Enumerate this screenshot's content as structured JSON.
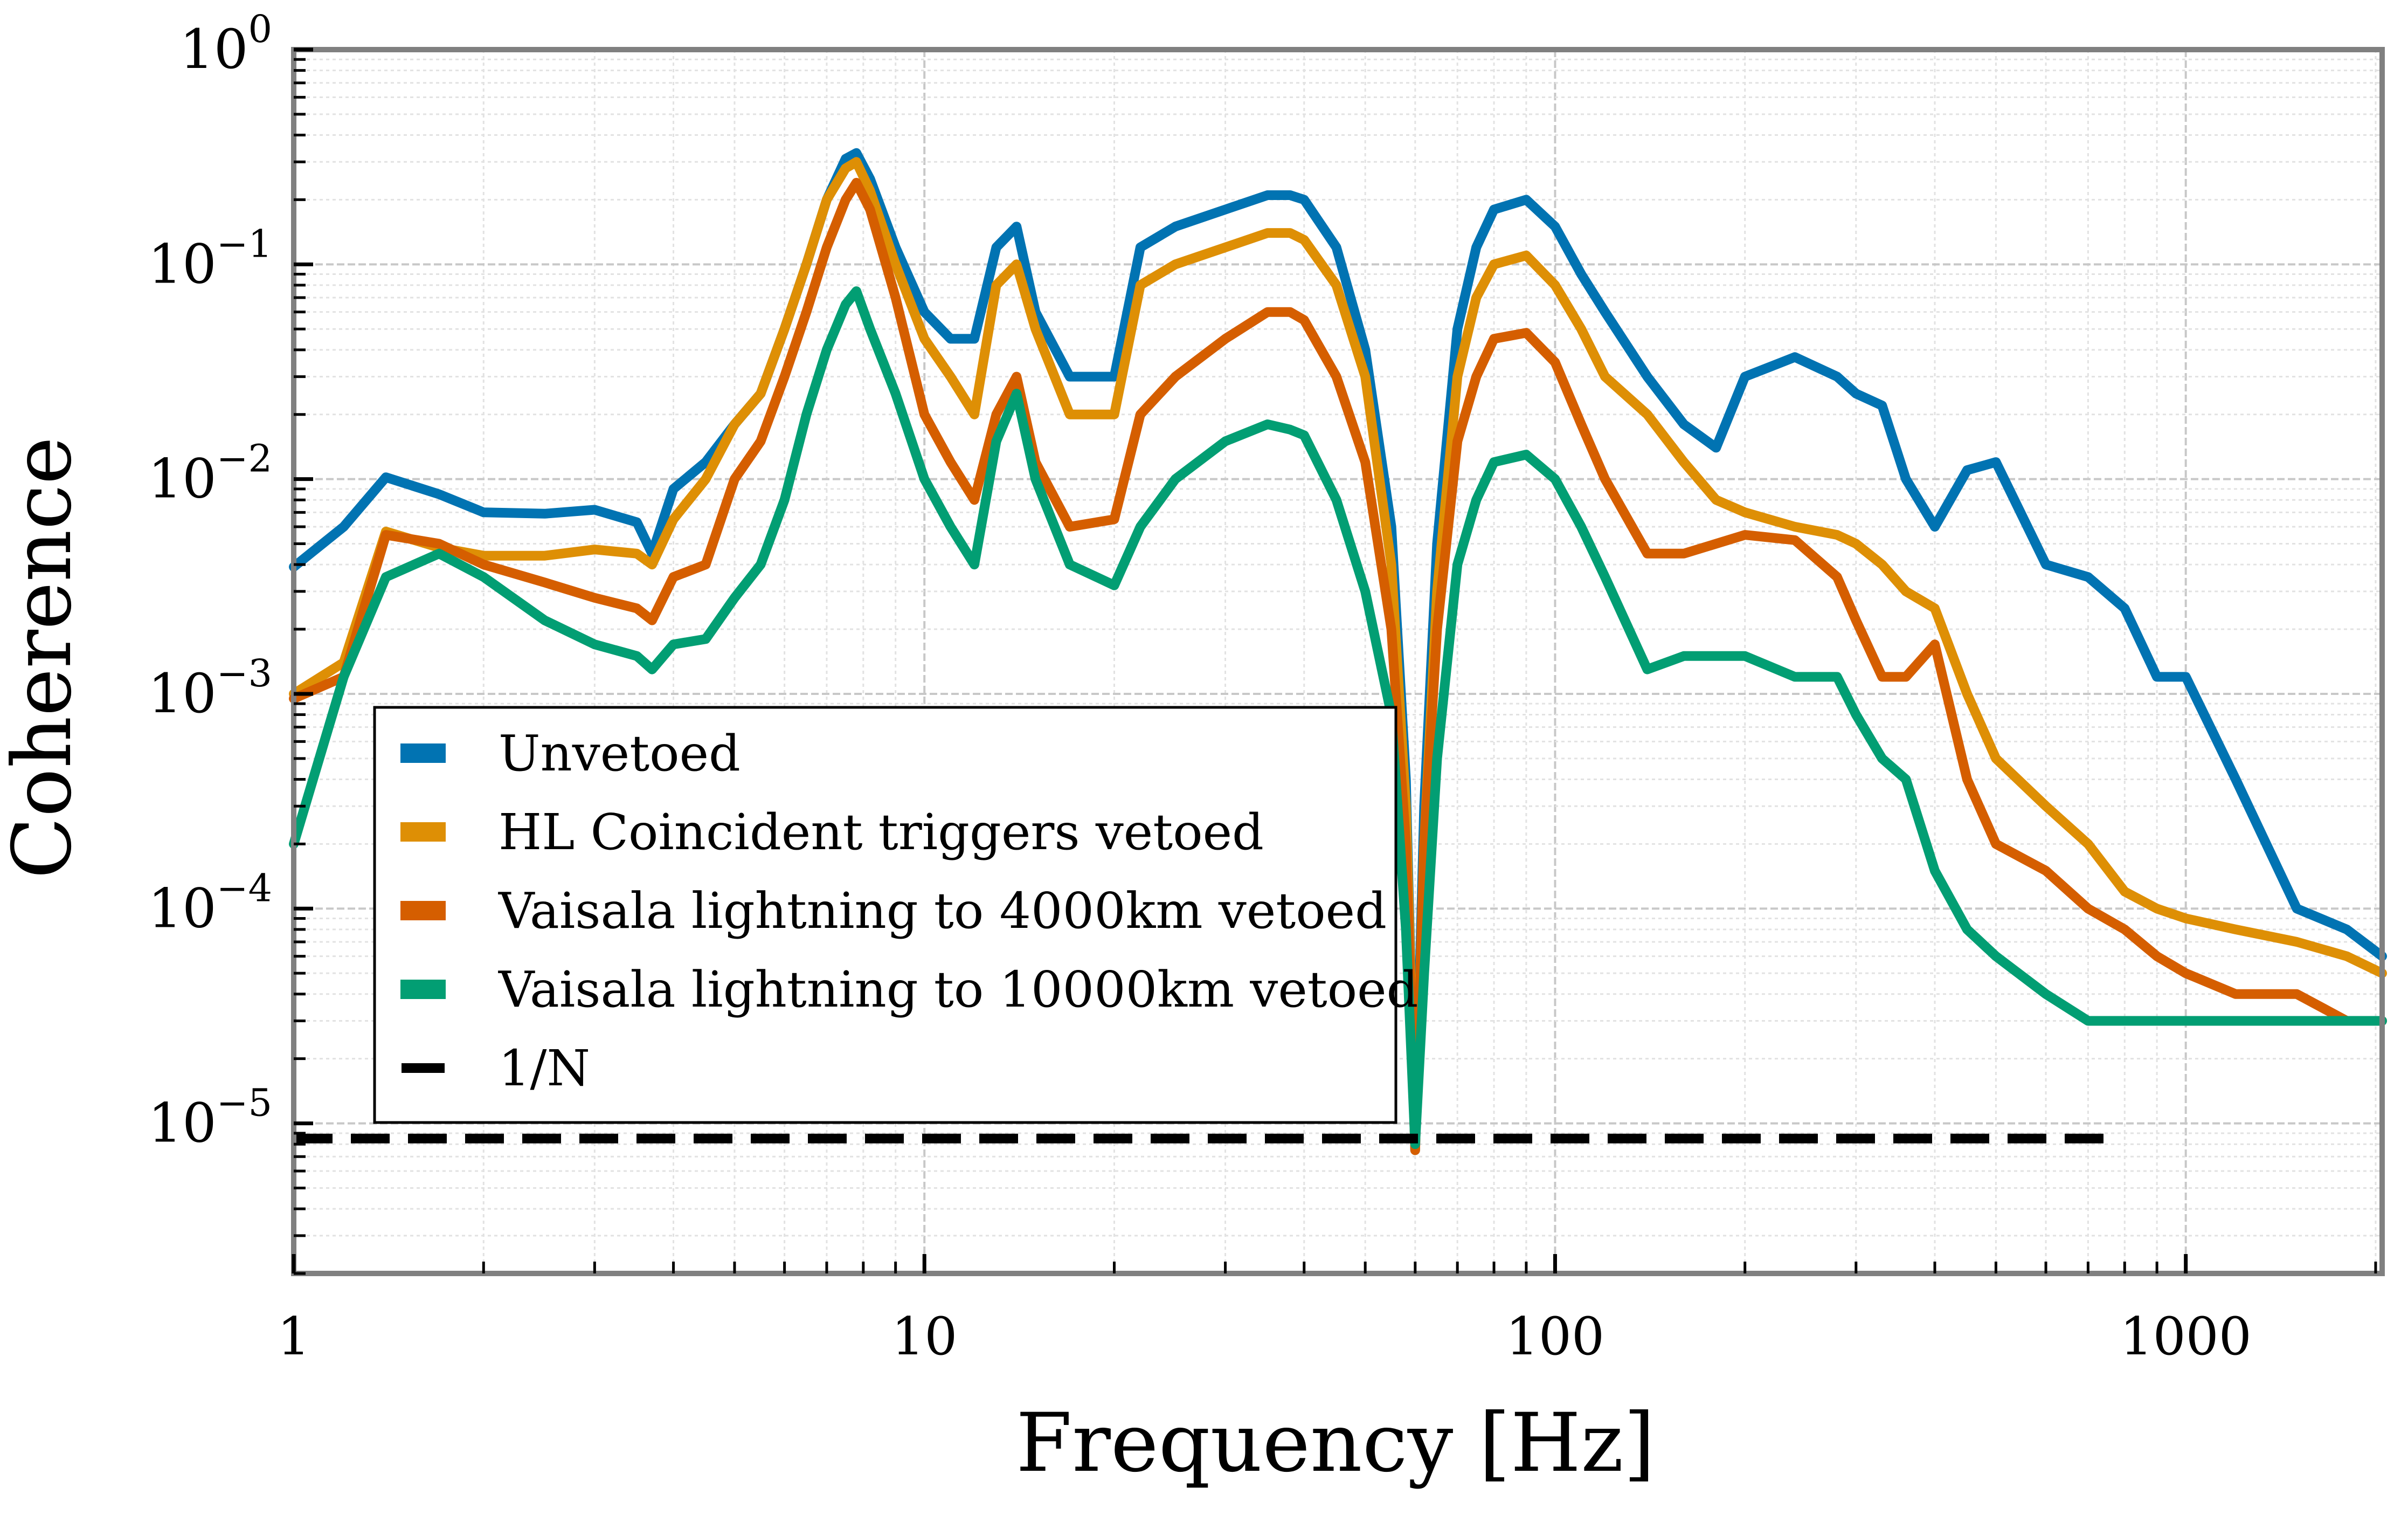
{
  "chart_data": {
    "type": "line",
    "title": "",
    "xlabel": "Frequency [Hz]",
    "ylabel": "Coherence",
    "xscale": "log",
    "yscale": "log",
    "xlim": [
      1,
      2048
    ],
    "ylim": [
      2e-06,
      1
    ],
    "grid": "on (major and minor)",
    "legend_placement": "lower-left",
    "x_ticks": [
      {
        "value": 1,
        "label": "1"
      },
      {
        "value": 10,
        "label": "10"
      },
      {
        "value": 100,
        "label": "100"
      },
      {
        "value": 1000,
        "label": "1000"
      }
    ],
    "y_ticks": [
      {
        "value": 1,
        "base": "10",
        "exp": "0"
      },
      {
        "value": 0.1,
        "base": "10",
        "exp": "−1"
      },
      {
        "value": 0.01,
        "base": "10",
        "exp": "−2"
      },
      {
        "value": 0.001,
        "base": "10",
        "exp": "−3"
      },
      {
        "value": 0.0001,
        "base": "10",
        "exp": "−4"
      },
      {
        "value": 1e-05,
        "base": "10",
        "exp": "−5"
      }
    ],
    "series": [
      {
        "name": "Unvetoed",
        "color": "#0173b2",
        "x": [
          1,
          1.2,
          1.4,
          1.7,
          2,
          2.5,
          3,
          3.5,
          3.7,
          4,
          4.5,
          5,
          5.5,
          6,
          6.5,
          7,
          7.5,
          7.8,
          8.2,
          9,
          10,
          11,
          12,
          13,
          14,
          15,
          17,
          20,
          22,
          25,
          30,
          35,
          38,
          40,
          45,
          50,
          55,
          58,
          60,
          62,
          65,
          70,
          75,
          80,
          90,
          100,
          110,
          120,
          140,
          160,
          180,
          200,
          240,
          280,
          300,
          330,
          360,
          400,
          450,
          500,
          600,
          700,
          800,
          900,
          1000,
          1200,
          1500,
          1800,
          2048
        ],
        "y": [
          0.0039,
          0.006,
          0.0102,
          0.0085,
          0.007,
          0.0069,
          0.0072,
          0.0063,
          0.0045,
          0.009,
          0.012,
          0.018,
          0.025,
          0.05,
          0.1,
          0.2,
          0.31,
          0.33,
          0.25,
          0.12,
          0.06,
          0.045,
          0.045,
          0.12,
          0.15,
          0.06,
          0.03,
          0.03,
          0.12,
          0.15,
          0.18,
          0.21,
          0.21,
          0.2,
          0.12,
          0.04,
          0.006,
          0.0004,
          7.5e-06,
          0.0003,
          0.005,
          0.05,
          0.12,
          0.18,
          0.2,
          0.15,
          0.09,
          0.06,
          0.03,
          0.018,
          0.014,
          0.03,
          0.037,
          0.03,
          0.025,
          0.022,
          0.01,
          0.006,
          0.011,
          0.012,
          0.004,
          0.0035,
          0.0025,
          0.0012,
          0.0012,
          0.0004,
          0.0001,
          8e-05,
          6e-05
        ]
      },
      {
        "name": "HL Coincident triggers vetoed",
        "color": "#de8f05",
        "x": [
          1,
          1.2,
          1.4,
          1.7,
          2,
          2.5,
          3,
          3.5,
          3.7,
          4,
          4.5,
          5,
          5.5,
          6,
          6.5,
          7,
          7.5,
          7.8,
          8.2,
          9,
          10,
          11,
          12,
          13,
          14,
          15,
          17,
          20,
          22,
          25,
          30,
          35,
          38,
          40,
          45,
          50,
          55,
          58,
          60,
          62,
          65,
          70,
          75,
          80,
          90,
          100,
          110,
          120,
          140,
          160,
          180,
          200,
          240,
          280,
          300,
          330,
          360,
          400,
          450,
          500,
          600,
          700,
          800,
          900,
          1000,
          1200,
          1500,
          1800,
          2048
        ],
        "y": [
          0.001,
          0.0014,
          0.0057,
          0.0048,
          0.0044,
          0.0044,
          0.0047,
          0.0045,
          0.004,
          0.0065,
          0.01,
          0.018,
          0.025,
          0.05,
          0.1,
          0.2,
          0.28,
          0.3,
          0.22,
          0.1,
          0.045,
          0.03,
          0.02,
          0.08,
          0.1,
          0.05,
          0.02,
          0.02,
          0.08,
          0.1,
          0.12,
          0.14,
          0.14,
          0.13,
          0.08,
          0.03,
          0.004,
          0.0003,
          8e-06,
          0.0002,
          0.003,
          0.03,
          0.07,
          0.1,
          0.11,
          0.08,
          0.05,
          0.03,
          0.02,
          0.012,
          0.008,
          0.007,
          0.006,
          0.0055,
          0.005,
          0.004,
          0.003,
          0.0025,
          0.001,
          0.0005,
          0.0003,
          0.0002,
          0.00012,
          0.0001,
          9e-05,
          8e-05,
          7e-05,
          6e-05,
          5e-05
        ]
      },
      {
        "name": "Vaisala lightning to 4000km vetoed",
        "color": "#d55e00",
        "x": [
          1,
          1.2,
          1.4,
          1.7,
          2,
          2.5,
          3,
          3.5,
          3.7,
          4,
          4.5,
          5,
          5.5,
          6,
          6.5,
          7,
          7.5,
          7.8,
          8.2,
          9,
          10,
          11,
          12,
          13,
          14,
          15,
          17,
          20,
          22,
          25,
          30,
          35,
          38,
          40,
          45,
          50,
          55,
          58,
          60,
          62,
          65,
          70,
          75,
          80,
          90,
          100,
          110,
          120,
          140,
          160,
          180,
          200,
          240,
          280,
          300,
          330,
          360,
          400,
          450,
          500,
          600,
          700,
          800,
          900,
          1000,
          1200,
          1500,
          1800,
          2048
        ],
        "y": [
          0.00095,
          0.0012,
          0.0055,
          0.005,
          0.004,
          0.0033,
          0.0028,
          0.0025,
          0.0022,
          0.0035,
          0.004,
          0.01,
          0.015,
          0.03,
          0.06,
          0.12,
          0.2,
          0.24,
          0.18,
          0.07,
          0.02,
          0.012,
          0.008,
          0.02,
          0.03,
          0.012,
          0.006,
          0.0065,
          0.02,
          0.03,
          0.045,
          0.06,
          0.06,
          0.055,
          0.03,
          0.012,
          0.002,
          0.0002,
          7.5e-06,
          0.0002,
          0.002,
          0.015,
          0.03,
          0.045,
          0.048,
          0.035,
          0.018,
          0.01,
          0.0045,
          0.0045,
          0.005,
          0.0055,
          0.0052,
          0.0035,
          0.0022,
          0.0012,
          0.0012,
          0.0017,
          0.0004,
          0.0002,
          0.00015,
          0.0001,
          8e-05,
          6e-05,
          5e-05,
          4e-05,
          4e-05,
          3e-05,
          3e-05
        ]
      },
      {
        "name": "Vaisala lightning to 10000km vetoed",
        "color": "#029e73",
        "x": [
          1,
          1.2,
          1.4,
          1.7,
          2,
          2.5,
          3,
          3.5,
          3.7,
          4,
          4.5,
          5,
          5.5,
          6,
          6.5,
          7,
          7.5,
          7.8,
          8.2,
          9,
          10,
          11,
          12,
          13,
          14,
          15,
          17,
          20,
          22,
          25,
          30,
          35,
          38,
          40,
          45,
          50,
          55,
          58,
          60,
          62,
          65,
          70,
          75,
          80,
          90,
          100,
          110,
          120,
          140,
          160,
          180,
          200,
          240,
          280,
          300,
          330,
          360,
          400,
          450,
          500,
          600,
          700,
          800,
          900,
          1000,
          1200,
          1500,
          1800,
          2048
        ],
        "y": [
          0.0002,
          0.0012,
          0.0035,
          0.0045,
          0.0035,
          0.0022,
          0.0017,
          0.0015,
          0.0013,
          0.0017,
          0.0018,
          0.0028,
          0.004,
          0.008,
          0.02,
          0.04,
          0.065,
          0.075,
          0.05,
          0.025,
          0.01,
          0.006,
          0.004,
          0.015,
          0.025,
          0.01,
          0.004,
          0.0032,
          0.006,
          0.01,
          0.015,
          0.018,
          0.017,
          0.016,
          0.008,
          0.003,
          0.0008,
          8e-05,
          8e-06,
          5e-05,
          0.0005,
          0.004,
          0.008,
          0.012,
          0.013,
          0.01,
          0.006,
          0.0035,
          0.0013,
          0.0015,
          0.0015,
          0.0015,
          0.0012,
          0.0012,
          0.0008,
          0.0005,
          0.0004,
          0.00015,
          8e-05,
          6e-05,
          4e-05,
          3e-05,
          3e-05,
          3e-05,
          3e-05,
          3e-05,
          3e-05,
          3e-05,
          3e-05
        ]
      }
    ],
    "reference_line": {
      "name": "1/N",
      "value": 8.5e-06,
      "style": "dashed",
      "x_range": [
        1,
        750
      ],
      "color": "#000000"
    }
  }
}
